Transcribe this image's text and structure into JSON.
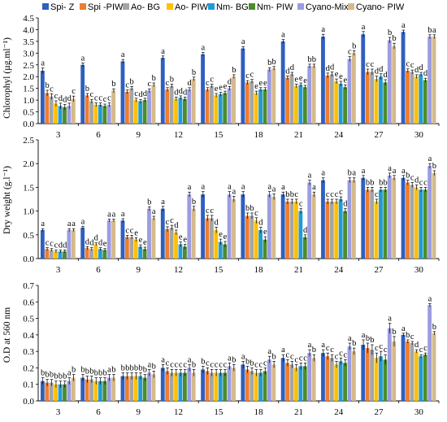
{
  "legend": [
    {
      "name": "Spi- Z",
      "color": "#2F5FBF"
    },
    {
      "name": "Spi -PIW",
      "color": "#ED7D31"
    },
    {
      "name": "Ao- BG",
      "color": "#A5A5A5"
    },
    {
      "name": "Ao- PIW",
      "color": "#FFC000"
    },
    {
      "name": "Nm- BG",
      "color": "#1F9BD7"
    },
    {
      "name": "Nm- PIW",
      "color": "#4C8C2B"
    },
    {
      "name": "Cyano-Mix",
      "color": "#9C9CE0"
    },
    {
      "name": "Cyano- PIW",
      "color": "#D5B98C"
    }
  ],
  "chart_data": [
    {
      "type": "bar",
      "ylabel": "Chlorophyl (µg.ml⁻¹)",
      "ylim": [
        0,
        4.5
      ],
      "yticks": [
        "0.0",
        "0.5",
        "1.0",
        "1.5",
        "2.0",
        "2.5",
        "3.0",
        "3.5",
        "4.0",
        "4.5"
      ],
      "categories": [
        "3",
        "6",
        "9",
        "12",
        "15",
        "18",
        "21",
        "24",
        "27",
        "30"
      ],
      "series": [
        {
          "name": "Spi- Z",
          "values": [
            2.25,
            2.5,
            2.65,
            2.8,
            2.95,
            3.2,
            3.5,
            3.7,
            3.8,
            3.9
          ]
        },
        {
          "name": "Spi -PIW",
          "values": [
            1.3,
            1.2,
            1.35,
            1.45,
            1.45,
            1.75,
            1.95,
            2.05,
            2.2,
            2.25
          ]
        },
        {
          "name": "Ao- BG",
          "values": [
            1.15,
            0.95,
            1.5,
            1.6,
            1.6,
            1.8,
            2.1,
            2.1,
            2.2,
            2.2
          ]
        },
        {
          "name": "Ao- PIW",
          "values": [
            0.85,
            0.8,
            1.0,
            1.05,
            1.2,
            1.3,
            1.6,
            1.8,
            1.9,
            2.0
          ]
        },
        {
          "name": "Nm- BG",
          "values": [
            0.75,
            0.8,
            0.95,
            1.1,
            1.25,
            1.45,
            1.65,
            1.7,
            2.0,
            2.1
          ]
        },
        {
          "name": "Nm- PIW",
          "values": [
            0.7,
            0.75,
            1.0,
            1.05,
            1.3,
            1.45,
            1.55,
            1.55,
            1.75,
            1.85
          ]
        },
        {
          "name": "Cyano-Mix",
          "values": [
            0.75,
            0.8,
            1.4,
            1.45,
            1.5,
            2.3,
            2.45,
            2.75,
            3.55,
            3.7
          ]
        },
        {
          "name": "Cyano- PIW",
          "values": [
            1.05,
            1.4,
            1.65,
            1.9,
            2.0,
            2.35,
            2.45,
            3.0,
            3.3,
            3.7
          ]
        }
      ],
      "errors": [
        0.12,
        0.08,
        0.08,
        0.08,
        0.08,
        0.08,
        0.08,
        0.1,
        0.12,
        0.08
      ],
      "letters": [
        [
          "a",
          "b",
          "c",
          "c",
          "d",
          "d",
          "d",
          "c"
        ],
        [
          "a",
          "b",
          "c",
          "c",
          "c",
          "c",
          "c",
          "b"
        ],
        [
          "a",
          "c",
          "b",
          "c",
          "d",
          "d",
          "c",
          "b"
        ],
        [
          "a",
          "c",
          "b",
          "d",
          "d",
          "d",
          "d",
          "b"
        ],
        [
          "a",
          "c",
          "c",
          "e",
          "e",
          "e",
          "d",
          "b"
        ],
        [
          "a",
          "c",
          "c",
          "e",
          "e",
          "e",
          "b",
          "b"
        ],
        [
          "a",
          "d",
          "d",
          "e",
          "e",
          "e",
          "b",
          "b"
        ],
        [
          "a",
          "d",
          "d",
          "e",
          "e",
          "e",
          "c",
          "b"
        ],
        [
          "a",
          "c",
          "c",
          "d",
          "d",
          "d",
          "b",
          "b"
        ],
        [
          "a",
          "c",
          "c",
          "d",
          "d",
          "d",
          "b",
          "a"
        ]
      ]
    },
    {
      "type": "bar",
      "ylabel": "Dry weight (g.l⁻¹)",
      "ylim": [
        0,
        2.5
      ],
      "yticks": [
        "0.0",
        "0.5",
        "1.0",
        "1.5",
        "2.0",
        "2.5"
      ],
      "categories": [
        "3",
        "6",
        "9",
        "12",
        "15",
        "18",
        "21",
        "24",
        "27",
        "30"
      ],
      "series": [
        {
          "name": "Spi- Z",
          "values": [
            0.6,
            0.65,
            0.8,
            1.05,
            1.35,
            1.35,
            1.35,
            1.65,
            1.7,
            1.7
          ]
        },
        {
          "name": "Spi -PIW",
          "values": [
            0.2,
            0.22,
            0.45,
            0.62,
            0.85,
            0.9,
            1.2,
            1.2,
            1.45,
            1.6
          ]
        },
        {
          "name": "Ao- BG",
          "values": [
            0.18,
            0.2,
            0.45,
            0.65,
            0.85,
            0.9,
            1.2,
            1.2,
            1.45,
            1.55
          ]
        },
        {
          "name": "Ao- PIW",
          "values": [
            0.15,
            0.3,
            0.4,
            0.55,
            0.6,
            0.8,
            1.2,
            1.2,
            1.2,
            1.5
          ]
        },
        {
          "name": "Nm- BG",
          "values": [
            0.15,
            0.2,
            0.25,
            0.3,
            0.35,
            0.6,
            1.0,
            1.25,
            1.45,
            1.45
          ]
        },
        {
          "name": "Nm- PIW",
          "values": [
            0.15,
            0.18,
            0.2,
            0.25,
            0.3,
            0.4,
            0.45,
            1.0,
            1.45,
            1.45
          ]
        },
        {
          "name": "Cyano-Mix",
          "values": [
            0.6,
            0.8,
            1.05,
            1.35,
            1.35,
            1.35,
            1.6,
            1.65,
            1.75,
            1.95
          ]
        },
        {
          "name": "Cyano- PIW",
          "values": [
            0.6,
            0.8,
            0.85,
            1.05,
            1.25,
            1.3,
            1.35,
            1.65,
            1.7,
            1.8
          ]
        }
      ],
      "errors": [
        0.03,
        0.03,
        0.04,
        0.05,
        0.06,
        0.06,
        0.05,
        0.05,
        0.05,
        0.05
      ],
      "letters": [
        [
          "a",
          "c",
          "c",
          "c",
          "d",
          "d",
          "a",
          "a"
        ],
        [
          "a",
          "d",
          "d",
          "d",
          "d",
          "e",
          "a",
          "a"
        ],
        [
          "a",
          "c",
          "c",
          "e",
          "e",
          "e",
          "b",
          "a"
        ],
        [
          "a",
          "c",
          "c",
          "d",
          "e",
          "e",
          "a",
          "b"
        ],
        [
          "a",
          "c",
          "c",
          "d",
          "e",
          "e",
          "a",
          "a"
        ],
        [
          "a",
          "b",
          "b",
          "c",
          "d",
          "e",
          "a",
          "a"
        ],
        [
          "a",
          "b",
          "b",
          "c",
          "c",
          "d",
          "a",
          "a"
        ],
        [
          "a",
          "c",
          "c",
          "c",
          "c",
          "d",
          "b",
          "a"
        ],
        [
          "a",
          "b",
          "b",
          "c",
          "b",
          "b",
          "a",
          "a"
        ],
        [
          "a",
          "b",
          "c",
          "d",
          "c",
          "c",
          "a",
          "b"
        ]
      ]
    },
    {
      "type": "bar",
      "ylabel": "O.D at 560 nm",
      "ylim": [
        0,
        0.7
      ],
      "yticks": [
        "0.0",
        "0.1",
        "0.2",
        "0.3",
        "0.4",
        "0.5",
        "0.6",
        "0.7"
      ],
      "categories": [
        "3",
        "6",
        "9",
        "12",
        "15",
        "18",
        "21",
        "24",
        "27",
        "30"
      ],
      "series": [
        {
          "name": "Spi- Z",
          "values": [
            0.12,
            0.14,
            0.15,
            0.2,
            0.19,
            0.22,
            0.26,
            0.29,
            0.34,
            0.4
          ]
        },
        {
          "name": "Spi -PIW",
          "values": [
            0.11,
            0.13,
            0.15,
            0.18,
            0.18,
            0.19,
            0.23,
            0.27,
            0.32,
            0.36
          ]
        },
        {
          "name": "Ao- BG",
          "values": [
            0.11,
            0.13,
            0.15,
            0.17,
            0.17,
            0.18,
            0.22,
            0.26,
            0.31,
            0.35
          ]
        },
        {
          "name": "Ao- PIW",
          "values": [
            0.1,
            0.12,
            0.15,
            0.17,
            0.17,
            0.17,
            0.2,
            0.22,
            0.26,
            0.3
          ]
        },
        {
          "name": "Nm- BG",
          "values": [
            0.1,
            0.12,
            0.15,
            0.17,
            0.17,
            0.17,
            0.21,
            0.24,
            0.27,
            0.27
          ]
        },
        {
          "name": "Nm- PIW",
          "values": [
            0.1,
            0.12,
            0.14,
            0.17,
            0.17,
            0.18,
            0.21,
            0.23,
            0.25,
            0.28
          ]
        },
        {
          "name": "Cyano-Mix",
          "values": [
            0.12,
            0.14,
            0.17,
            0.2,
            0.21,
            0.25,
            0.29,
            0.33,
            0.44,
            0.58
          ]
        },
        {
          "name": "Cyano- PIW",
          "values": [
            0.14,
            0.14,
            0.16,
            0.17,
            0.2,
            0.22,
            0.26,
            0.3,
            0.36,
            0.41
          ]
        }
      ],
      "errors": [
        0.02,
        0.02,
        0.02,
        0.02,
        0.02,
        0.02,
        0.02,
        0.02,
        0.03,
        0.01
      ],
      "letters": [
        [
          "b",
          "b",
          "b",
          "b",
          "b",
          "b",
          "a",
          "b"
        ],
        [
          "b",
          "b",
          "b",
          "b",
          "b",
          "b",
          "a",
          "b"
        ],
        [
          "b",
          "b",
          "b",
          "b",
          "b",
          "b",
          "a",
          "b"
        ],
        [
          "a",
          "c",
          "c",
          "c",
          "c",
          "c",
          "a",
          "b"
        ],
        [
          "b",
          "c",
          "c",
          "c",
          "c",
          "c",
          "a",
          "b"
        ],
        [
          "a",
          "b",
          "b",
          "c",
          "c",
          "c",
          "a",
          "b"
        ],
        [
          "a",
          "c",
          "c",
          "c",
          "c",
          "c",
          "a",
          "b"
        ],
        [
          "a",
          "c",
          "c",
          "c",
          "c",
          "c",
          "a",
          "b"
        ],
        [
          "a",
          "b",
          "b",
          "c",
          "c",
          "c",
          "a",
          "b"
        ],
        [
          "a",
          "b",
          "c",
          "d",
          "c",
          "c",
          "a",
          "b"
        ]
      ]
    }
  ]
}
